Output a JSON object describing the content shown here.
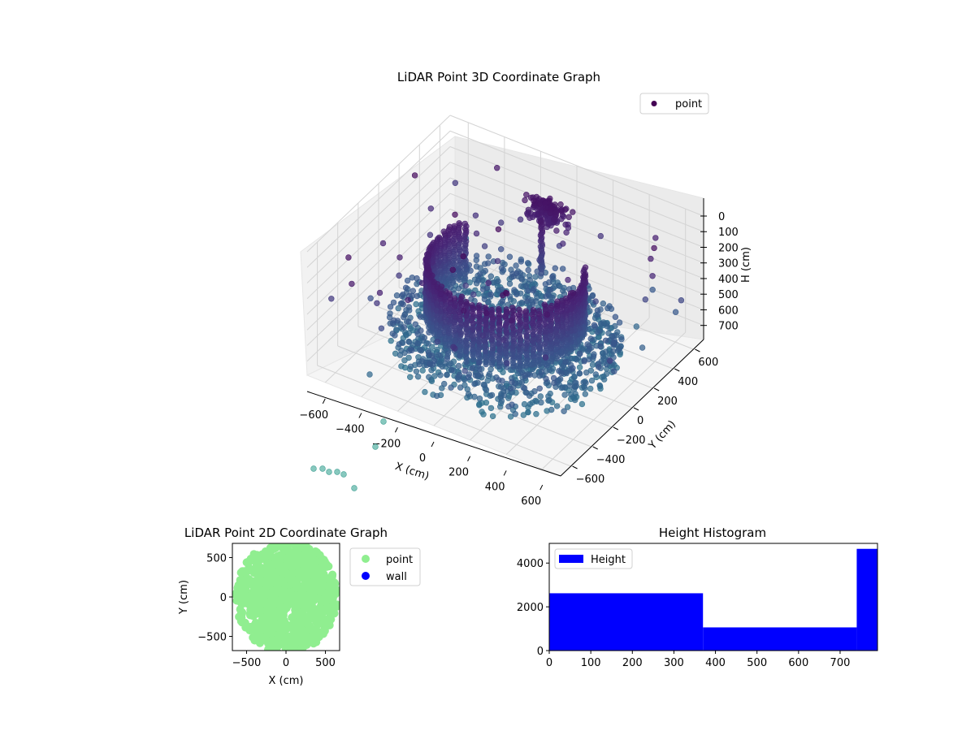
{
  "chart_data": [
    {
      "type": "scatter",
      "projection": "3d",
      "title": "LiDAR Point 3D Coordinate Graph",
      "xlabel": "X (cm)",
      "ylabel": "Y (cm)",
      "zlabel": "H (cm)",
      "xlim": [
        -700,
        700
      ],
      "ylim": [
        -700,
        700
      ],
      "zlim": [
        0,
        790
      ],
      "z_inverted": true,
      "xticks": [
        -600,
        -400,
        -200,
        0,
        200,
        400,
        600
      ],
      "yticks": [
        -600,
        -400,
        -200,
        0,
        200,
        400,
        600
      ],
      "zticks": [
        0,
        100,
        200,
        300,
        400,
        500,
        600,
        700
      ],
      "legend": [
        "point"
      ],
      "legend_placement": "top-right",
      "grid": true,
      "colormap": "viridis",
      "structure": {
        "wall_ring_center": [
          0,
          0
        ],
        "wall_ring_radius_cm": 380,
        "wall_arc_angle_deg": [
          150,
          390
        ],
        "wall_height_range_cm": [
          180,
          560
        ],
        "floor_height_range_cm": [
          540,
          760
        ],
        "ceiling_feature_xy": [
          -50,
          500
        ],
        "ceiling_feature_height_range_cm": [
          130,
          260
        ]
      }
    },
    {
      "type": "scatter",
      "title": "LiDAR Point 2D Coordinate Graph",
      "xlabel": "X (cm)",
      "ylabel": "Y (cm)",
      "xlim": [
        -680,
        680
      ],
      "ylim": [
        -680,
        680
      ],
      "xticks": [
        -500,
        0,
        500
      ],
      "yticks": [
        -500,
        0,
        500
      ],
      "legend": [
        {
          "label": "point",
          "color": "#90ee90"
        },
        {
          "label": "wall",
          "color": "#0000ff"
        }
      ],
      "legend_placement": "outside-right",
      "fill_radius_cm": 620
    },
    {
      "type": "bar",
      "subtype": "histogram",
      "title": "Height Histogram",
      "legend": [
        "Height"
      ],
      "legend_placement": "top-left",
      "color": "#0000ff",
      "xlim": [
        0,
        790
      ],
      "ylim": [
        0,
        4900
      ],
      "xticks": [
        0,
        100,
        200,
        300,
        400,
        500,
        600,
        700
      ],
      "yticks": [
        0,
        2000,
        4000
      ],
      "bins": [
        {
          "start": 0,
          "end": 370,
          "count": 2620
        },
        {
          "start": 370,
          "end": 740,
          "count": 1060
        },
        {
          "start": 740,
          "end": 790,
          "count": 4650
        }
      ]
    }
  ]
}
